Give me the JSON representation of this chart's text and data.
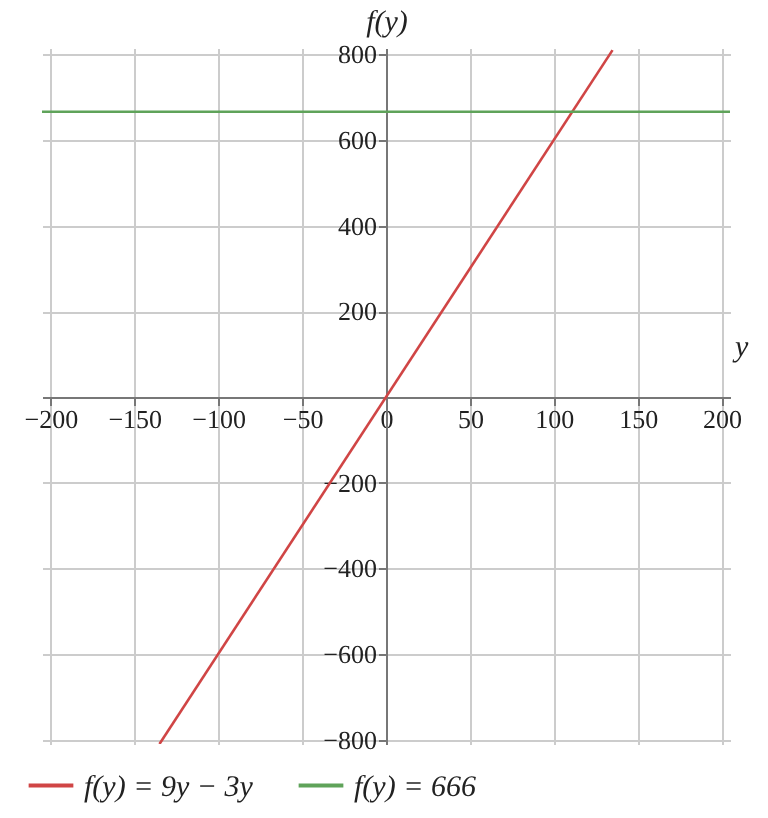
{
  "chart_data": {
    "type": "line",
    "xlabel": "y",
    "ylabel": "f(y)",
    "xlim": [
      -205,
      205
    ],
    "ylim": [
      -810,
      815
    ],
    "xticks": [
      -200,
      -150,
      -100,
      -50,
      0,
      50,
      100,
      150,
      200
    ],
    "yticks": [
      -800,
      -600,
      -400,
      -200,
      200,
      400,
      600,
      800
    ],
    "grid": true,
    "legend": "bottom",
    "series": [
      {
        "name": "f(y) = 9y − 3y",
        "color": "#d04545",
        "x": [
          -135,
          135
        ],
        "values": [
          -810,
          810
        ]
      },
      {
        "name": "f(y) = 666",
        "color": "#5fa35a",
        "x": [
          -205,
          205
        ],
        "values": [
          666,
          666
        ]
      }
    ]
  }
}
